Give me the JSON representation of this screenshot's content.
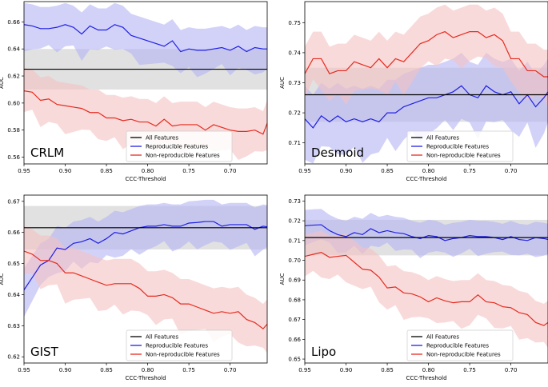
{
  "figure": {
    "xlabel": "CCC-Threshold",
    "ylabel": "AUC"
  },
  "legend": [
    "All Features",
    "Reproducible Features",
    "Non-reproducible Features"
  ],
  "colors": {
    "all": "#000000",
    "repro": "#1f1fe6",
    "nonrepro": "#e62b1f",
    "repro_band": "#b4b4f5",
    "nonrepro_band": "#f5c2c2",
    "all_band": "#c9c9c9"
  },
  "chart_data": [
    {
      "type": "line",
      "title": "CRLM",
      "xlabel": "CCC-Threshold",
      "ylabel": "AUC",
      "xlim": [
        0.95,
        0.655
      ],
      "ylim": [
        0.555,
        0.675
      ],
      "xticks": [
        "0.95",
        "0.90",
        "0.85",
        "0.80",
        "0.75",
        "0.70"
      ],
      "yticks": [
        "0.56",
        "0.58",
        "0.60",
        "0.62",
        "0.64",
        "0.66"
      ],
      "all_features": {
        "value": 0.625,
        "band": [
          0.61,
          0.64
        ]
      },
      "x": [
        0.95,
        0.94,
        0.93,
        0.92,
        0.91,
        0.9,
        0.89,
        0.88,
        0.87,
        0.86,
        0.85,
        0.84,
        0.83,
        0.82,
        0.81,
        0.8,
        0.79,
        0.78,
        0.77,
        0.76,
        0.75,
        0.74,
        0.73,
        0.72,
        0.71,
        0.7,
        0.69,
        0.68,
        0.67,
        0.66,
        0.655
      ],
      "series": [
        {
          "name": "Reproducible Features",
          "values": [
            0.658,
            0.657,
            0.655,
            0.655,
            0.656,
            0.658,
            0.656,
            0.651,
            0.657,
            0.654,
            0.654,
            0.658,
            0.656,
            0.65,
            0.648,
            0.646,
            0.644,
            0.642,
            0.646,
            0.638,
            0.64,
            0.639,
            0.639,
            0.64,
            0.641,
            0.639,
            0.642,
            0.638,
            0.641,
            0.64,
            0.64
          ],
          "band_width": 0.016
        },
        {
          "name": "Non-reproducible Features",
          "values": [
            0.609,
            0.608,
            0.602,
            0.603,
            0.599,
            0.598,
            0.597,
            0.596,
            0.593,
            0.593,
            0.589,
            0.589,
            0.587,
            0.588,
            0.586,
            0.586,
            0.583,
            0.588,
            0.583,
            0.584,
            0.584,
            0.584,
            0.58,
            0.584,
            0.582,
            0.58,
            0.579,
            0.579,
            0.58,
            0.577,
            0.585
          ],
          "band_width": 0.017
        }
      ]
    },
    {
      "type": "line",
      "title": "Desmoid",
      "xlabel": "CCC-Threshold",
      "ylabel": "AUC",
      "xlim": [
        0.95,
        0.655
      ],
      "ylim": [
        0.703,
        0.757
      ],
      "xticks": [
        "0.95",
        "0.90",
        "0.85",
        "0.80",
        "0.75",
        "0.70"
      ],
      "yticks": [
        "0.71",
        "0.72",
        "0.73",
        "0.74",
        "0.75"
      ],
      "all_features": {
        "value": 0.726,
        "band": [
          0.717,
          0.735
        ]
      },
      "x": [
        0.95,
        0.94,
        0.93,
        0.92,
        0.91,
        0.9,
        0.89,
        0.88,
        0.87,
        0.86,
        0.85,
        0.84,
        0.83,
        0.82,
        0.81,
        0.8,
        0.79,
        0.78,
        0.77,
        0.76,
        0.75,
        0.74,
        0.73,
        0.72,
        0.71,
        0.7,
        0.69,
        0.68,
        0.67,
        0.66,
        0.655
      ],
      "series": [
        {
          "name": "Reproducible Features",
          "values": [
            0.718,
            0.715,
            0.719,
            0.717,
            0.719,
            0.717,
            0.718,
            0.717,
            0.718,
            0.717,
            0.72,
            0.72,
            0.722,
            0.723,
            0.724,
            0.725,
            0.725,
            0.726,
            0.727,
            0.729,
            0.726,
            0.725,
            0.729,
            0.727,
            0.726,
            0.727,
            0.723,
            0.726,
            0.722,
            0.725,
            0.727
          ],
          "band_width": 0.011
        },
        {
          "name": "Non-reproducible Features",
          "values": [
            0.733,
            0.738,
            0.738,
            0.733,
            0.734,
            0.734,
            0.737,
            0.736,
            0.735,
            0.738,
            0.735,
            0.738,
            0.737,
            0.74,
            0.743,
            0.744,
            0.746,
            0.747,
            0.745,
            0.746,
            0.747,
            0.747,
            0.745,
            0.746,
            0.744,
            0.738,
            0.738,
            0.734,
            0.734,
            0.732,
            0.732
          ],
          "band_width": 0.009
        }
      ]
    },
    {
      "type": "line",
      "title": "GIST",
      "xlabel": "CCC-Threshold",
      "ylabel": "AUC",
      "xlim": [
        0.95,
        0.655
      ],
      "ylim": [
        0.618,
        0.672
      ],
      "xticks": [
        "0.95",
        "0.90",
        "0.85",
        "0.80",
        "0.75",
        "0.70"
      ],
      "yticks": [
        "0.62",
        "0.63",
        "0.64",
        "0.65",
        "0.66",
        "0.67"
      ],
      "all_features": {
        "value": 0.6615,
        "band": [
          0.6545,
          0.6685
        ]
      },
      "x": [
        0.95,
        0.94,
        0.93,
        0.92,
        0.91,
        0.9,
        0.89,
        0.88,
        0.87,
        0.86,
        0.85,
        0.84,
        0.83,
        0.82,
        0.81,
        0.8,
        0.79,
        0.78,
        0.77,
        0.76,
        0.75,
        0.74,
        0.73,
        0.72,
        0.71,
        0.7,
        0.69,
        0.68,
        0.67,
        0.66,
        0.655
      ],
      "series": [
        {
          "name": "Reproducible Features",
          "values": [
            0.6415,
            0.6455,
            0.6495,
            0.651,
            0.655,
            0.6545,
            0.6565,
            0.657,
            0.658,
            0.6565,
            0.658,
            0.66,
            0.6595,
            0.6605,
            0.6615,
            0.662,
            0.662,
            0.6625,
            0.662,
            0.662,
            0.663,
            0.6632,
            0.6635,
            0.6635,
            0.662,
            0.6625,
            0.6625,
            0.6625,
            0.661,
            0.662,
            0.6618
          ],
          "band_width": 0.007
        },
        {
          "name": "Non-reproducible Features",
          "values": [
            0.654,
            0.653,
            0.651,
            0.651,
            0.65,
            0.647,
            0.647,
            0.646,
            0.645,
            0.644,
            0.643,
            0.6435,
            0.6435,
            0.6435,
            0.642,
            0.6395,
            0.6395,
            0.64,
            0.639,
            0.637,
            0.637,
            0.636,
            0.635,
            0.634,
            0.6345,
            0.634,
            0.6345,
            0.632,
            0.631,
            0.629,
            0.6305
          ],
          "band_width": 0.008
        }
      ]
    },
    {
      "type": "line",
      "title": "Lipo",
      "xlabel": "CCC-Threshold",
      "ylabel": "AUC",
      "xlim": [
        0.95,
        0.655
      ],
      "ylim": [
        0.648,
        0.733
      ],
      "xticks": [
        "0.95",
        "0.90",
        "0.85",
        "0.80",
        "0.75",
        "0.70"
      ],
      "yticks": [
        "0.65",
        "0.66",
        "0.67",
        "0.68",
        "0.69",
        "0.70",
        "0.71",
        "0.72",
        "0.73"
      ],
      "all_features": {
        "value": 0.7115,
        "band": [
          0.7025,
          0.7205
        ]
      },
      "x": [
        0.95,
        0.94,
        0.93,
        0.92,
        0.91,
        0.9,
        0.89,
        0.88,
        0.87,
        0.86,
        0.85,
        0.84,
        0.83,
        0.82,
        0.81,
        0.8,
        0.79,
        0.78,
        0.77,
        0.76,
        0.75,
        0.74,
        0.73,
        0.72,
        0.71,
        0.7,
        0.69,
        0.68,
        0.67,
        0.66,
        0.655
      ],
      "series": [
        {
          "name": "Reproducible Features",
          "values": [
            0.7175,
            0.7178,
            0.718,
            0.715,
            0.713,
            0.712,
            0.714,
            0.713,
            0.716,
            0.714,
            0.715,
            0.714,
            0.7135,
            0.712,
            0.711,
            0.7125,
            0.712,
            0.71,
            0.711,
            0.7115,
            0.7125,
            0.712,
            0.712,
            0.7115,
            0.7105,
            0.712,
            0.7105,
            0.71,
            0.7115,
            0.711,
            0.7105
          ],
          "band_width": 0.008
        },
        {
          "name": "Non-reproducible Features",
          "values": [
            0.702,
            0.703,
            0.704,
            0.7015,
            0.702,
            0.7025,
            0.699,
            0.6955,
            0.695,
            0.6915,
            0.686,
            0.6865,
            0.6835,
            0.683,
            0.6815,
            0.679,
            0.681,
            0.6795,
            0.6785,
            0.679,
            0.679,
            0.6825,
            0.679,
            0.6785,
            0.6765,
            0.676,
            0.6735,
            0.6725,
            0.6685,
            0.667,
            0.6685
          ],
          "band_width": 0.011
        }
      ]
    }
  ]
}
